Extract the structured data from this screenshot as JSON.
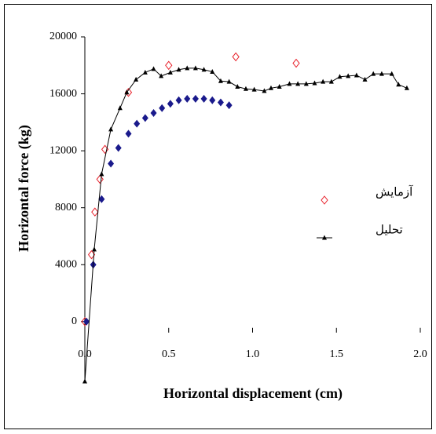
{
  "chart_data": {
    "type": "scatter",
    "xlabel": "Horizontal displacement (cm)",
    "ylabel": "Horizontal force (kg)",
    "xlim": [
      0,
      2
    ],
    "ylim": [
      -4200,
      20000
    ],
    "xticks": [
      {
        "value": 0,
        "label": "0.0"
      },
      0.5,
      {
        "value": 1,
        "label": "1.0"
      },
      1.5,
      {
        "value": 2,
        "label": "2.0"
      }
    ],
    "yticks": [
      0,
      4000,
      8000,
      12000,
      16000,
      20000
    ],
    "grid": false,
    "legend": "right",
    "series": [
      {
        "name": "آزمایش",
        "color": "#e8202a",
        "marker": "diamond-open",
        "line": false,
        "x": [
          0,
          0.04,
          0.06,
          0.09,
          0.12,
          0.26,
          0.5,
          0.9,
          1.26
        ],
        "values": [
          0,
          4700,
          7700,
          10000,
          12100,
          16100,
          18000,
          18600,
          18150
        ]
      },
      {
        "color": "#1a1a8c",
        "marker": "diamond",
        "line": false,
        "x": [
          0.01,
          0.05,
          0.1,
          0.155,
          0.2,
          0.26,
          0.31,
          0.36,
          0.41,
          0.46,
          0.51,
          0.56,
          0.61,
          0.66,
          0.71,
          0.76,
          0.81,
          0.86
        ],
        "values": [
          0,
          4000,
          8600,
          11100,
          12200,
          13200,
          13900,
          14300,
          14650,
          15000,
          15300,
          15550,
          15650,
          15650,
          15650,
          15550,
          15400,
          15200
        ]
      },
      {
        "name": "تحلیل",
        "color": "#000000",
        "marker": "triangle",
        "line": true,
        "x": [
          0,
          0.056,
          0.1,
          0.155,
          0.21,
          0.25,
          0.305,
          0.36,
          0.41,
          0.455,
          0.51,
          0.56,
          0.61,
          0.66,
          0.71,
          0.76,
          0.81,
          0.86,
          0.91,
          0.96,
          1.01,
          1.07,
          1.11,
          1.16,
          1.22,
          1.27,
          1.32,
          1.37,
          1.42,
          1.47,
          1.52,
          1.57,
          1.62,
          1.67,
          1.72,
          1.77,
          1.83,
          1.87,
          1.92
        ],
        "values": [
          -4200,
          5070,
          10360,
          13500,
          15000,
          16100,
          17000,
          17500,
          17750,
          17250,
          17500,
          17700,
          17800,
          17800,
          17700,
          17550,
          16900,
          16850,
          16500,
          16350,
          16300,
          16200,
          16400,
          16500,
          16700,
          16700,
          16700,
          16750,
          16850,
          16850,
          17200,
          17250,
          17300,
          17000,
          17400,
          17400,
          17400,
          16650,
          16400
        ]
      }
    ]
  }
}
